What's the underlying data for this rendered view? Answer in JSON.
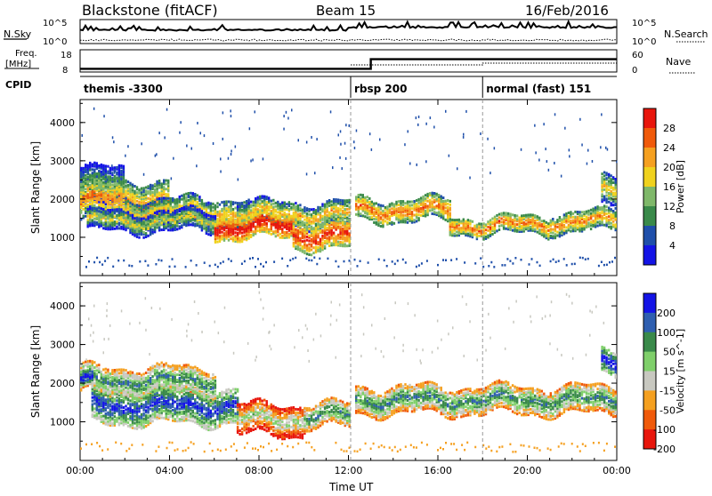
{
  "header": {
    "radar": "Blackstone (fitACF)",
    "beam": "Beam 15",
    "date": "16/Feb/2016"
  },
  "status_panel": {
    "nsky_label": "N.Sky",
    "nsearch_label": "N.Search",
    "nsky_ticks": [
      "10^5",
      "10^0"
    ],
    "nsearch_ticks": [
      "10^5",
      "10^0"
    ],
    "freq_label_line1": "Freq.",
    "freq_label_line2": "[MHz]",
    "freq_ticks": [
      "18",
      "8"
    ],
    "nave_label": "Nave",
    "nave_ticks": [
      "60",
      "0"
    ],
    "cpid_label": "CPID",
    "cpid_segments": [
      {
        "name": "themis -3300",
        "start_hour": 0
      },
      {
        "name": "rbsp 200",
        "start_hour": 12.1
      },
      {
        "name": "normal (fast) 151",
        "start_hour": 18
      }
    ],
    "freq_steps": [
      {
        "hour": 0,
        "mhz": 10
      },
      {
        "hour": 13.0,
        "mhz": 16
      }
    ]
  },
  "chart_data": [
    {
      "type": "heatmap",
      "title": "",
      "xlabel": "Time UT",
      "ylabel": "Slant Range [km]",
      "xlim": [
        0,
        24
      ],
      "ylim": [
        0,
        4600
      ],
      "x_ticks": [
        "00:00",
        "04:00",
        "08:00",
        "12:00",
        "16:00",
        "20:00",
        "00:00"
      ],
      "x_tick_values": [
        0,
        4,
        8,
        12,
        16,
        20,
        24
      ],
      "y_ticks": [
        1000,
        2000,
        3000,
        4000
      ],
      "colorbar": {
        "label": "Power [dB]",
        "ticks": [
          "28",
          "24",
          "20",
          "16",
          "12",
          "8",
          "4"
        ],
        "colors": [
          "#e8160c",
          "#f05a0a",
          "#f5a020",
          "#f0d21e",
          "#7fb86a",
          "#3a8a4a",
          "#1f4faa",
          "#1414e6"
        ]
      },
      "bands": [
        {
          "t0": 0.0,
          "t1": 2.0,
          "r": 2350,
          "w": 500,
          "v": 0.25
        },
        {
          "t0": 0.0,
          "t1": 4.0,
          "r": 2000,
          "w": 500,
          "v": 0.55
        },
        {
          "t0": 2.0,
          "t1": 7.5,
          "r": 1700,
          "w": 350,
          "v": 0.45
        },
        {
          "t0": 7.0,
          "t1": 12.0,
          "r": 1650,
          "w": 300,
          "v": 0.45
        },
        {
          "t0": 0.3,
          "t1": 6.0,
          "r": 1450,
          "w": 250,
          "v": 0.35
        },
        {
          "t0": 6.0,
          "t1": 9.5,
          "r": 1300,
          "w": 280,
          "v": 0.85
        },
        {
          "t0": 9.5,
          "t1": 12.0,
          "r": 1100,
          "w": 350,
          "v": 0.75
        },
        {
          "t0": 12.3,
          "t1": 16.5,
          "r": 1750,
          "w": 280,
          "v": 0.6
        },
        {
          "t0": 16.5,
          "t1": 21.0,
          "r": 1350,
          "w": 220,
          "v": 0.6
        },
        {
          "t0": 21.0,
          "t1": 24.0,
          "r": 1450,
          "w": 260,
          "v": 0.55
        },
        {
          "t0": 23.3,
          "t1": 24.0,
          "r": 2200,
          "w": 400,
          "v": 0.4
        }
      ]
    },
    {
      "type": "heatmap",
      "title": "",
      "xlabel": "Time UT",
      "ylabel": "Slant Range [km]",
      "xlim": [
        0,
        24
      ],
      "ylim": [
        0,
        4600
      ],
      "x_ticks": [
        "00:00",
        "04:00",
        "08:00",
        "12:00",
        "16:00",
        "20:00",
        "00:00"
      ],
      "x_tick_values": [
        0,
        4,
        8,
        12,
        16,
        20,
        24
      ],
      "y_ticks": [
        1000,
        2000,
        3000,
        4000
      ],
      "colorbar": {
        "label": "Velocity [m s^-1]",
        "ticks": [
          "200",
          "100",
          "50",
          "15",
          "-15",
          "-50",
          "-100",
          "-200"
        ],
        "colors": [
          "#1414e6",
          "#2f5fb0",
          "#3a8a4a",
          "#7fcf6a",
          "#c8c8c0",
          "#f5a020",
          "#f05a0a",
          "#e8160c"
        ]
      },
      "bands": [
        {
          "t0": 0.0,
          "t1": 6.0,
          "r": 2100,
          "w": 350,
          "v": 0.55
        },
        {
          "t0": 0.5,
          "t1": 7.0,
          "r": 1450,
          "w": 450,
          "v": 0.75
        },
        {
          "t0": 7.0,
          "t1": 10.0,
          "r": 1100,
          "w": 400,
          "v": 0.3
        },
        {
          "t0": 10.0,
          "t1": 12.0,
          "r": 1200,
          "w": 300,
          "v": 0.55
        },
        {
          "t0": 12.3,
          "t1": 24.0,
          "r": 1600,
          "w": 350,
          "v": 0.55
        },
        {
          "t0": 0.0,
          "t1": 0.6,
          "r": 2050,
          "w": 200,
          "v": 0.85
        },
        {
          "t0": 23.3,
          "t1": 24.0,
          "r": 2600,
          "w": 300,
          "v": 0.85
        }
      ]
    }
  ]
}
